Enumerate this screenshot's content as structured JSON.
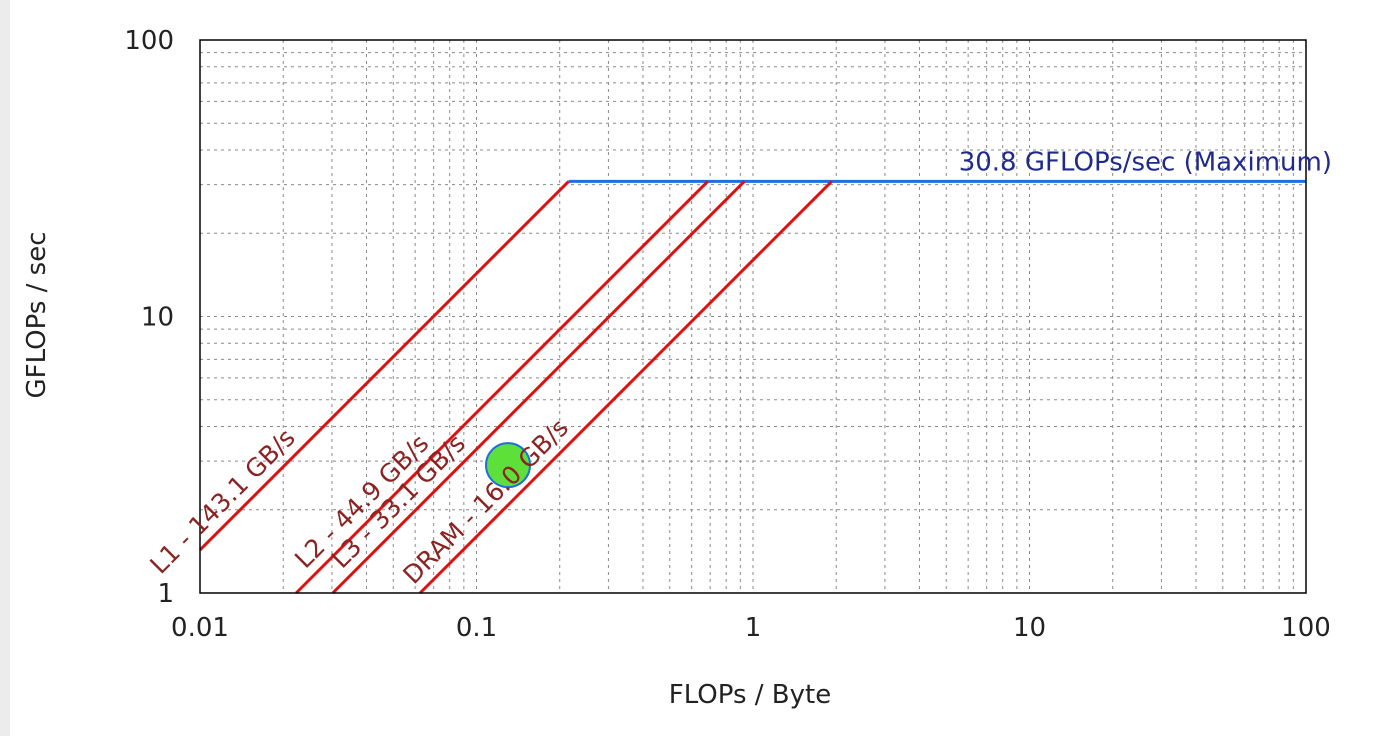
{
  "chart_data": {
    "type": "line",
    "title": "",
    "xlabel": "FLOPs / Byte",
    "ylabel": "GFLOPs / sec",
    "xscale": "log",
    "yscale": "log",
    "xlim": [
      0.01,
      100
    ],
    "ylim": [
      1,
      100
    ],
    "grid": true,
    "x_ticks": [
      {
        "value": 0.01,
        "label": "0.01"
      },
      {
        "value": 0.1,
        "label": "0.1"
      },
      {
        "value": 1,
        "label": "1"
      },
      {
        "value": 10,
        "label": "10"
      },
      {
        "value": 100,
        "label": "100"
      }
    ],
    "y_ticks": [
      {
        "value": 1,
        "label": "1"
      },
      {
        "value": 10,
        "label": "10"
      },
      {
        "value": 100,
        "label": "100"
      }
    ],
    "peak": {
      "value": 30.8,
      "label": "30.8 GFLOPs/sec (Maximum)",
      "color": "#1f6fe0"
    },
    "roofs": [
      {
        "name": "L1",
        "bandwidth": 143.1,
        "label": "L1 - 143.1 GB/s",
        "color": "#e01010"
      },
      {
        "name": "L2",
        "bandwidth": 44.9,
        "label": "L2 - 44.9 GB/s",
        "color": "#e01010"
      },
      {
        "name": "L3",
        "bandwidth": 33.1,
        "label": "L3 - 33.1 GB/s",
        "color": "#e01010"
      },
      {
        "name": "DRAM",
        "bandwidth": 16.0,
        "label": "DRAM - 16.0 GB/s",
        "color": "#e01010"
      }
    ],
    "points": [
      {
        "x": 0.13,
        "y": 2.9,
        "color": "#5ee03a",
        "stroke": "#1f6fe0"
      }
    ]
  }
}
